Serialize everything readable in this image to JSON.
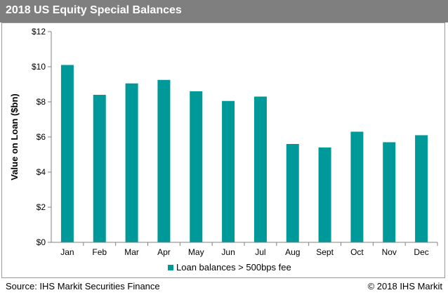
{
  "header": {
    "title": "2018 US Equity Special Balances"
  },
  "footer": {
    "source": "Source: IHS Markit Securities Finance",
    "copyright": "© 2018 IHS Markit"
  },
  "chart_data": {
    "type": "bar",
    "title": "2018 US Equity Special Balances",
    "xlabel": "",
    "ylabel": "Value on Loan ($bn)",
    "categories": [
      "Jan",
      "Feb",
      "Mar",
      "Apr",
      "May",
      "Jun",
      "Jul",
      "Aug",
      "Sept",
      "Oct",
      "Nov",
      "Dec"
    ],
    "series": [
      {
        "name": "Loan balances > 500bps fee",
        "values": [
          10.1,
          8.4,
          9.05,
          9.25,
          8.6,
          8.05,
          8.3,
          5.6,
          5.4,
          6.3,
          5.7,
          6.1
        ]
      }
    ],
    "ylim": [
      0,
      12
    ],
    "yticks": [
      0,
      2,
      4,
      6,
      8,
      10,
      12
    ],
    "ytick_labels": [
      "$0",
      "$2",
      "$4",
      "$6",
      "$8",
      "$10",
      "$12"
    ],
    "grid": false,
    "legend_position": "bottom",
    "colors": {
      "bar": "#00999a",
      "axis": "#808080"
    }
  }
}
